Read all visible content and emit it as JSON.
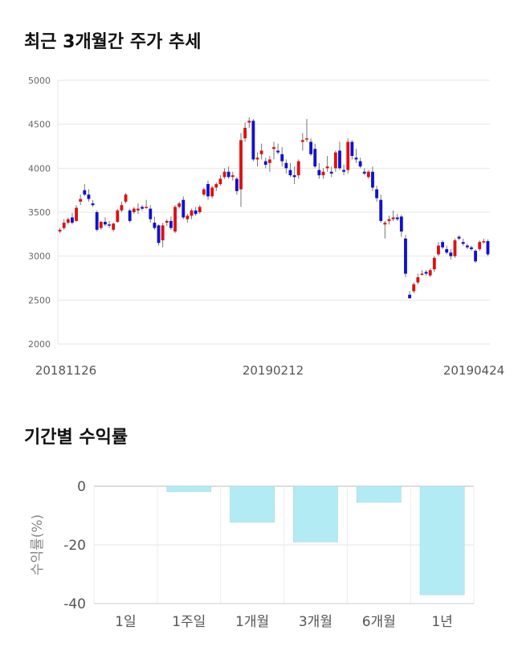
{
  "chart_data": [
    {
      "type": "candlestick",
      "title": "최근 3개월간 주가 추세",
      "ylim": [
        2000,
        5000
      ],
      "y_ticks": [
        "5000",
        "4500",
        "4000",
        "3500",
        "3000",
        "2500",
        "2000"
      ],
      "x_ticks": [
        "20181126",
        "20190212",
        "20190424"
      ],
      "grid": true,
      "colors": {
        "up": "#dd1111",
        "down": "#1111cc",
        "wick": "#777777"
      },
      "ohlc": [
        [
          3280,
          3320,
          3260,
          3300
        ],
        [
          3320,
          3420,
          3300,
          3380
        ],
        [
          3380,
          3440,
          3360,
          3420
        ],
        [
          3440,
          3490,
          3360,
          3380
        ],
        [
          3400,
          3580,
          3390,
          3550
        ],
        [
          3620,
          3700,
          3580,
          3650
        ],
        [
          3750,
          3820,
          3680,
          3700
        ],
        [
          3700,
          3760,
          3620,
          3650
        ],
        [
          3600,
          3640,
          3560,
          3580
        ],
        [
          3500,
          3520,
          3280,
          3300
        ],
        [
          3320,
          3400,
          3300,
          3390
        ],
        [
          3390,
          3440,
          3340,
          3360
        ],
        [
          3360,
          3400,
          3320,
          3350
        ],
        [
          3300,
          3380,
          3280,
          3370
        ],
        [
          3390,
          3540,
          3380,
          3520
        ],
        [
          3520,
          3620,
          3500,
          3580
        ],
        [
          3620,
          3720,
          3600,
          3700
        ],
        [
          3520,
          3540,
          3380,
          3400
        ],
        [
          3500,
          3560,
          3480,
          3540
        ],
        [
          3520,
          3600,
          3480,
          3540
        ],
        [
          3560,
          3580,
          3520,
          3540
        ],
        [
          3550,
          3640,
          3540,
          3560
        ],
        [
          3540,
          3580,
          3380,
          3420
        ],
        [
          3380,
          3450,
          3300,
          3320
        ],
        [
          3350,
          3360,
          3120,
          3150
        ],
        [
          3180,
          3380,
          3100,
          3350
        ],
        [
          3380,
          3420,
          3340,
          3400
        ],
        [
          3400,
          3450,
          3300,
          3320
        ],
        [
          3280,
          3580,
          3260,
          3560
        ],
        [
          3560,
          3620,
          3540,
          3600
        ],
        [
          3640,
          3680,
          3420,
          3440
        ],
        [
          3420,
          3480,
          3380,
          3460
        ],
        [
          3460,
          3540,
          3420,
          3520
        ],
        [
          3520,
          3560,
          3460,
          3480
        ],
        [
          3500,
          3580,
          3480,
          3560
        ],
        [
          3700,
          3780,
          3680,
          3760
        ],
        [
          3820,
          3860,
          3640,
          3680
        ],
        [
          3680,
          3800,
          3660,
          3780
        ],
        [
          3780,
          3840,
          3740,
          3820
        ],
        [
          3820,
          3920,
          3800,
          3880
        ],
        [
          3900,
          4000,
          3880,
          3960
        ],
        [
          3960,
          4020,
          3880,
          3900
        ],
        [
          3900,
          3960,
          3860,
          3920
        ],
        [
          3880,
          3900,
          3700,
          3740
        ],
        [
          3760,
          4400,
          3560,
          4320
        ],
        [
          4340,
          4520,
          4300,
          4460
        ],
        [
          4520,
          4580,
          4460,
          4540
        ],
        [
          4540,
          4560,
          4080,
          4100
        ],
        [
          4100,
          4180,
          4020,
          4120
        ],
        [
          4160,
          4280,
          4100,
          4200
        ],
        [
          4080,
          4120,
          4000,
          4040
        ],
        [
          4060,
          4140,
          3960,
          4100
        ],
        [
          4220,
          4300,
          4100,
          4240
        ],
        [
          4200,
          4280,
          4160,
          4180
        ],
        [
          4160,
          4240,
          4020,
          4080
        ],
        [
          4060,
          4100,
          3940,
          4000
        ],
        [
          3980,
          4060,
          3900,
          3920
        ],
        [
          3920,
          4020,
          3820,
          3900
        ],
        [
          3920,
          4100,
          3880,
          4080
        ],
        [
          4300,
          4400,
          4200,
          4320
        ],
        [
          4340,
          4560,
          4300,
          4340
        ],
        [
          4300,
          4340,
          4140,
          4160
        ],
        [
          4220,
          4280,
          4000,
          4020
        ],
        [
          3980,
          4060,
          3880,
          3920
        ],
        [
          3920,
          4000,
          3880,
          3960
        ],
        [
          4000,
          4140,
          3960,
          4020
        ],
        [
          3960,
          4020,
          3900,
          3940
        ],
        [
          4000,
          4200,
          3960,
          4180
        ],
        [
          4200,
          4300,
          3980,
          4000
        ],
        [
          3980,
          4040,
          3920,
          3960
        ],
        [
          3980,
          4340,
          3940,
          4300
        ],
        [
          4300,
          4320,
          4100,
          4140
        ],
        [
          4120,
          4220,
          4060,
          4100
        ],
        [
          4080,
          4120,
          4000,
          4020
        ],
        [
          3960,
          4000,
          3920,
          3940
        ],
        [
          3900,
          3980,
          3880,
          3960
        ],
        [
          3960,
          4020,
          3740,
          3780
        ],
        [
          3760,
          3800,
          3620,
          3660
        ],
        [
          3640,
          3700,
          3380,
          3400
        ],
        [
          3360,
          3400,
          3200,
          3380
        ],
        [
          3400,
          3460,
          3360,
          3420
        ],
        [
          3420,
          3520,
          3400,
          3440
        ],
        [
          3440,
          3480,
          3400,
          3420
        ],
        [
          3450,
          3470,
          3220,
          3280
        ],
        [
          3200,
          3240,
          2760,
          2800
        ],
        [
          2560,
          2600,
          2520,
          2520
        ],
        [
          2600,
          2700,
          2580,
          2680
        ],
        [
          2700,
          2800,
          2680,
          2760
        ],
        [
          2800,
          2840,
          2780,
          2800
        ],
        [
          2820,
          2840,
          2780,
          2800
        ],
        [
          2780,
          2860,
          2760,
          2840
        ],
        [
          2850,
          3000,
          2820,
          2980
        ],
        [
          3020,
          3160,
          3000,
          3120
        ],
        [
          3160,
          3180,
          3080,
          3100
        ],
        [
          3080,
          3120,
          3020,
          3040
        ],
        [
          3040,
          3080,
          2960,
          3000
        ],
        [
          3000,
          3200,
          2980,
          3180
        ],
        [
          3220,
          3240,
          3180,
          3200
        ],
        [
          3160,
          3200,
          3120,
          3140
        ],
        [
          3120,
          3140,
          3080,
          3100
        ],
        [
          3100,
          3120,
          3060,
          3080
        ],
        [
          3060,
          3080,
          2920,
          2940
        ],
        [
          3080,
          3180,
          3060,
          3160
        ],
        [
          3160,
          3200,
          3140,
          3170
        ],
        [
          3170,
          3190,
          3000,
          3020
        ]
      ]
    },
    {
      "type": "bar",
      "title": "기간별 수익률",
      "ylabel": "수익률(%)",
      "ylim": [
        -40,
        0
      ],
      "y_ticks": [
        "0",
        "-20",
        "-40"
      ],
      "categories": [
        "1일",
        "1주일",
        "1개월",
        "3개월",
        "6개월",
        "1년"
      ],
      "values": [
        0,
        -1.8,
        -12.3,
        -19,
        -5.5,
        -37
      ],
      "bar_color": "#b3ebf4",
      "grid": true
    }
  ]
}
